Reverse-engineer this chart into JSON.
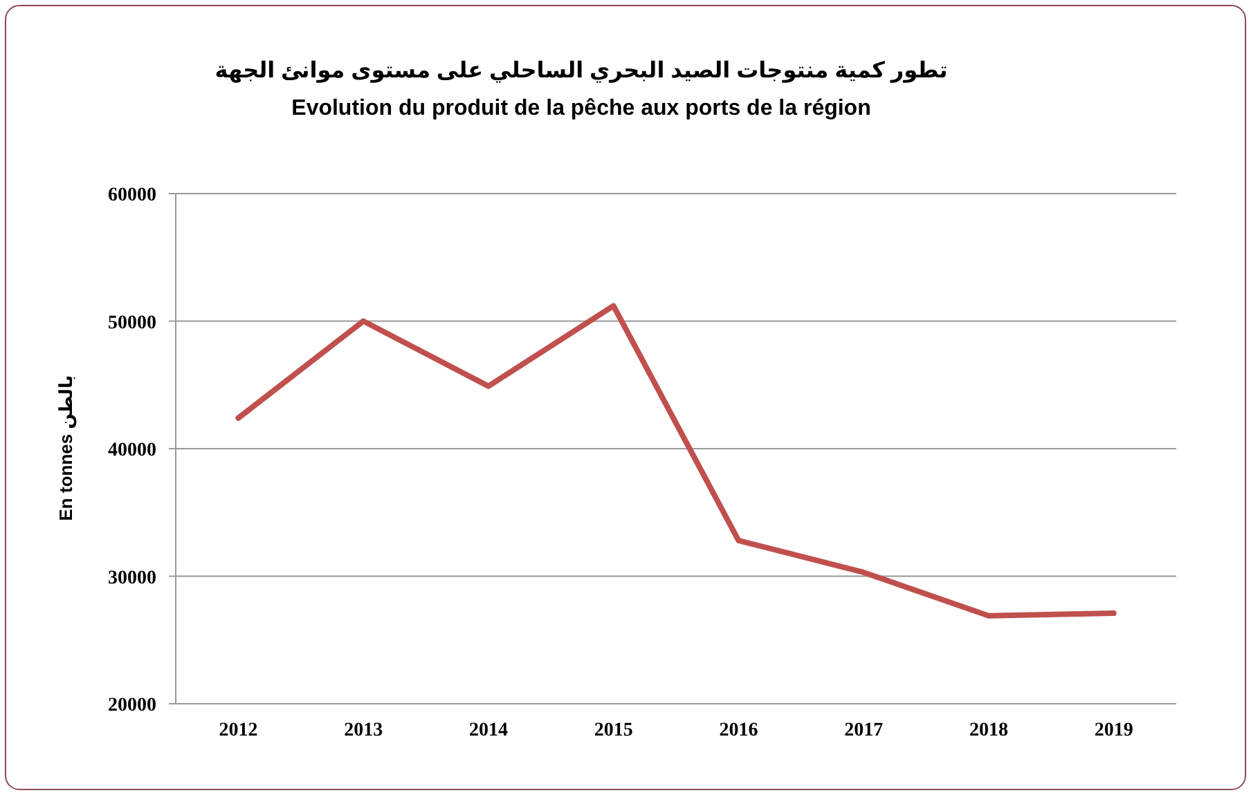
{
  "chart_data": {
    "type": "line",
    "title": "تطور كمية منتوجات الصيد البحري الساحلي على مستوى موانئ الجهة",
    "subtitle": "Evolution du produit de la pêche aux ports de la région",
    "ylabel": "En tonnes   بالطن",
    "categories": [
      "2012",
      "2013",
      "2014",
      "2015",
      "2016",
      "2017",
      "2018",
      "2019"
    ],
    "series": [
      {
        "color": "#c0504d",
        "values": [
          42400,
          50000,
          44900,
          51200,
          32800,
          30300,
          26900,
          27100
        ]
      }
    ],
    "ylim": [
      20000,
      60000
    ],
    "yticks": [
      20000,
      30000,
      40000,
      50000,
      60000
    ],
    "grid": "y",
    "marker": "none",
    "line_style": "solid"
  }
}
